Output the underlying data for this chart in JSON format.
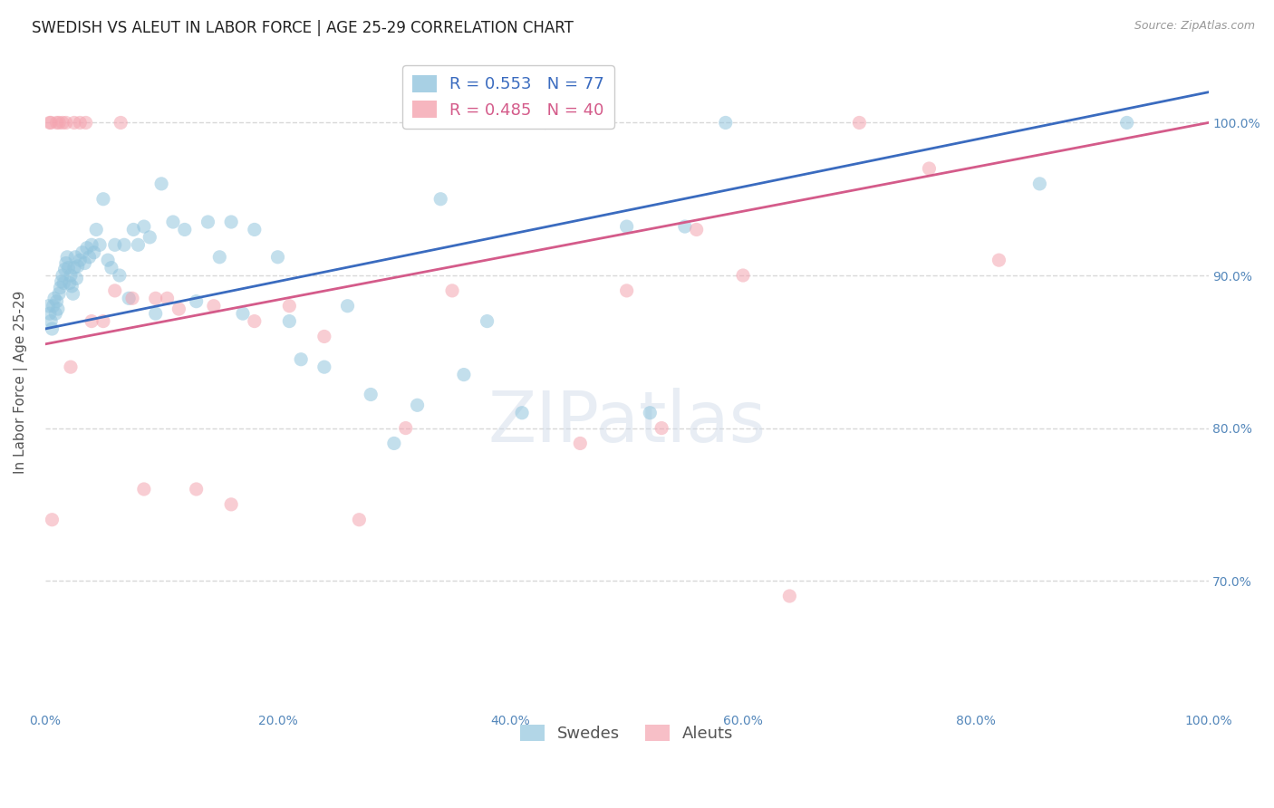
{
  "title": "SWEDISH VS ALEUT IN LABOR FORCE | AGE 25-29 CORRELATION CHART",
  "source": "Source: ZipAtlas.com",
  "ylabel": "In Labor Force | Age 25-29",
  "xlim": [
    0.0,
    1.0
  ],
  "ylim": [
    0.615,
    1.045
  ],
  "xtick_labels": [
    "0.0%",
    "20.0%",
    "40.0%",
    "60.0%",
    "80.0%",
    "100.0%"
  ],
  "xtick_values": [
    0.0,
    0.2,
    0.4,
    0.6,
    0.8,
    1.0
  ],
  "ytick_labels": [
    "70.0%",
    "80.0%",
    "90.0%",
    "100.0%"
  ],
  "ytick_values": [
    0.7,
    0.8,
    0.9,
    1.0
  ],
  "blue_R": "0.553",
  "blue_N": "77",
  "pink_R": "0.485",
  "pink_N": "40",
  "blue_scatter_color": "#92c5de",
  "pink_scatter_color": "#f4a4b0",
  "blue_line_color": "#3a6bbf",
  "pink_line_color": "#d45b8a",
  "background_color": "#ffffff",
  "grid_color": "#d8d8d8",
  "swedes_x": [
    0.003,
    0.004,
    0.005,
    0.006,
    0.007,
    0.008,
    0.009,
    0.01,
    0.011,
    0.012,
    0.013,
    0.014,
    0.015,
    0.016,
    0.017,
    0.018,
    0.019,
    0.02,
    0.021,
    0.022,
    0.023,
    0.024,
    0.025,
    0.026,
    0.027,
    0.028,
    0.03,
    0.032,
    0.034,
    0.036,
    0.038,
    0.04,
    0.042,
    0.044,
    0.047,
    0.05,
    0.054,
    0.057,
    0.06,
    0.064,
    0.068,
    0.072,
    0.076,
    0.08,
    0.085,
    0.09,
    0.095,
    0.1,
    0.11,
    0.12,
    0.13,
    0.14,
    0.15,
    0.16,
    0.17,
    0.18,
    0.2,
    0.21,
    0.22,
    0.24,
    0.26,
    0.28,
    0.3,
    0.32,
    0.34,
    0.36,
    0.38,
    0.395,
    0.41,
    0.43,
    0.45,
    0.5,
    0.52,
    0.55,
    0.585,
    0.855,
    0.93
  ],
  "swedes_y": [
    0.88,
    0.875,
    0.87,
    0.865,
    0.88,
    0.885,
    0.875,
    0.883,
    0.878,
    0.888,
    0.892,
    0.896,
    0.9,
    0.895,
    0.904,
    0.908,
    0.912,
    0.905,
    0.895,
    0.9,
    0.893,
    0.888,
    0.905,
    0.912,
    0.898,
    0.906,
    0.91,
    0.915,
    0.908,
    0.918,
    0.912,
    0.92,
    0.915,
    0.93,
    0.92,
    0.95,
    0.91,
    0.905,
    0.92,
    0.9,
    0.92,
    0.885,
    0.93,
    0.92,
    0.932,
    0.925,
    0.875,
    0.96,
    0.935,
    0.93,
    0.883,
    0.935,
    0.912,
    0.935,
    0.875,
    0.93,
    0.912,
    0.87,
    0.845,
    0.84,
    0.88,
    0.822,
    0.79,
    0.815,
    0.95,
    0.835,
    0.87,
    1.0,
    0.81,
    1.0,
    1.0,
    0.932,
    0.81,
    0.932,
    1.0,
    0.96,
    1.0
  ],
  "aleuts_x": [
    0.004,
    0.005,
    0.006,
    0.01,
    0.012,
    0.015,
    0.018,
    0.022,
    0.025,
    0.03,
    0.035,
    0.04,
    0.05,
    0.06,
    0.065,
    0.075,
    0.085,
    0.095,
    0.105,
    0.115,
    0.13,
    0.145,
    0.16,
    0.18,
    0.21,
    0.24,
    0.27,
    0.31,
    0.35,
    0.39,
    0.43,
    0.46,
    0.5,
    0.53,
    0.56,
    0.6,
    0.64,
    0.7,
    0.76,
    0.82
  ],
  "aleuts_y": [
    1.0,
    1.0,
    0.74,
    1.0,
    1.0,
    1.0,
    1.0,
    0.84,
    1.0,
    1.0,
    1.0,
    0.87,
    0.87,
    0.89,
    1.0,
    0.885,
    0.76,
    0.885,
    0.885,
    0.878,
    0.76,
    0.88,
    0.75,
    0.87,
    0.88,
    0.86,
    0.74,
    0.8,
    0.89,
    1.0,
    1.0,
    0.79,
    0.89,
    0.8,
    0.93,
    0.9,
    0.69,
    1.0,
    0.97,
    0.91
  ],
  "blue_intercept": 0.865,
  "blue_slope": 0.155,
  "pink_intercept": 0.855,
  "pink_slope": 0.145
}
